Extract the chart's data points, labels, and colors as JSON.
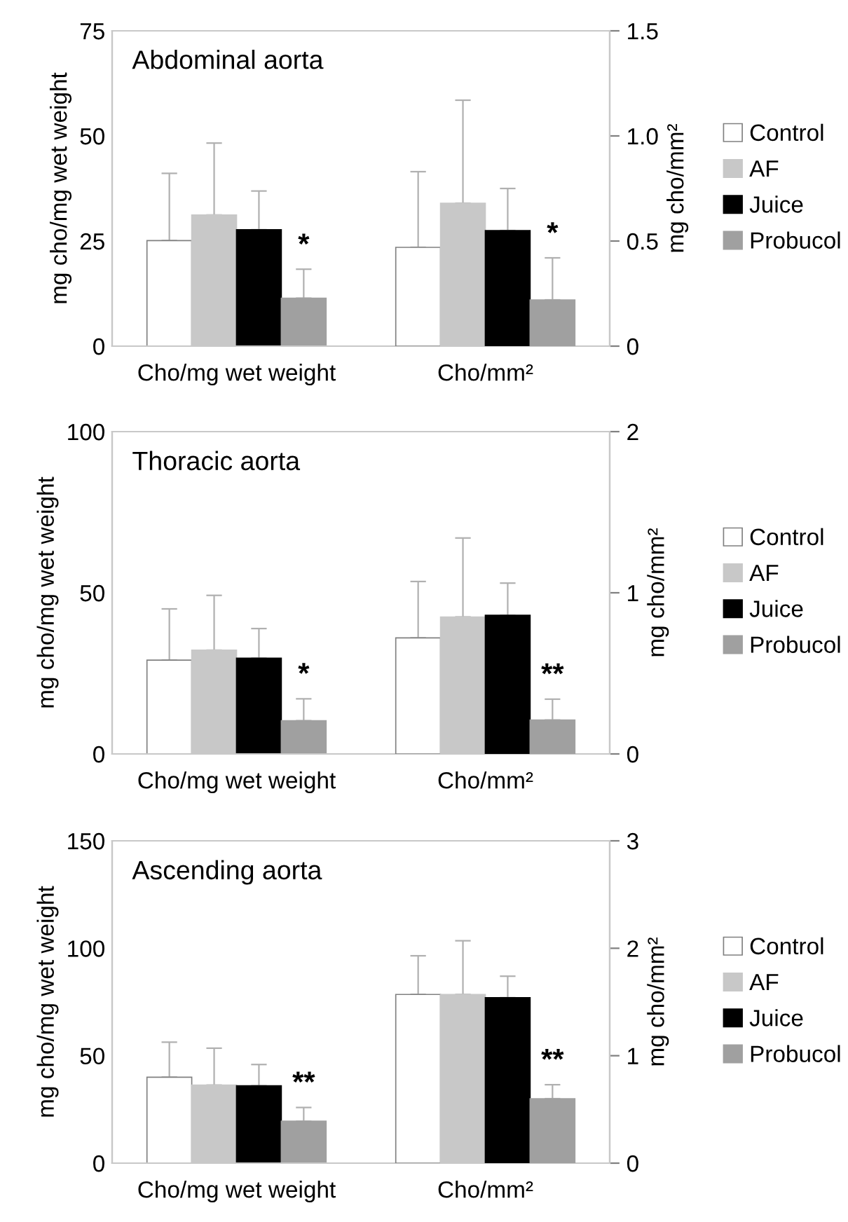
{
  "chart_data": [
    {
      "type": "bar",
      "title": "Abdominal aorta",
      "categories": [
        "Cho/mg wet weight",
        "Cho/mm²"
      ],
      "ylabel": "mg cho/mg wet weight",
      "y2label": "mg cho/mm²",
      "ylim": [
        0,
        75
      ],
      "yticks": [
        0,
        25,
        50,
        75
      ],
      "y2lim": [
        0,
        1.5
      ],
      "y2ticks": [
        0,
        {
          "value": 0.5,
          "label": "0.5"
        },
        {
          "value": 1.0,
          "label": "1.0"
        },
        {
          "value": 1.5,
          "label": "1.5"
        }
      ],
      "series": [
        {
          "name": "Control",
          "color": "#ffffff",
          "values": [
            25.1,
            null
          ],
          "errors": [
            [
              25.1,
              41.1
            ],
            null
          ]
        },
        {
          "name": "AF",
          "color": "#c8c8c8",
          "values": [
            31.2,
            null
          ],
          "errors": [
            [
              31.2,
              48.3
            ],
            null
          ]
        },
        {
          "name": "Juice",
          "color": "#000000",
          "values": [
            27.7,
            null
          ],
          "errors": [
            [
              27.7,
              36.9
            ],
            null
          ]
        },
        {
          "name": "Probucol",
          "color": "#a0a0a0",
          "values": [
            11.4,
            null
          ],
          "errors": [
            [
              11.4,
              18.3
            ],
            null
          ]
        },
        {
          "color": "#ffffff",
          "axis": "y2",
          "values": [
            null,
            0.47
          ],
          "errors": [
            null,
            [
              0.47,
              0.83
            ]
          ]
        },
        {
          "color": "#c8c8c8",
          "axis": "y2",
          "values": [
            null,
            0.68
          ],
          "errors": [
            null,
            [
              0.68,
              1.17
            ]
          ]
        },
        {
          "color": "#000000",
          "axis": "y2",
          "values": [
            null,
            0.55
          ],
          "errors": [
            null,
            [
              0.55,
              0.75
            ]
          ]
        },
        {
          "color": "#a0a0a0",
          "axis": "y2",
          "values": [
            null,
            0.22
          ],
          "errors": [
            null,
            [
              0.22,
              0.42
            ]
          ]
        }
      ],
      "annotations": [
        "*",
        "*"
      ],
      "legend": "right",
      "grid": false
    },
    {
      "type": "bar",
      "title": "Thoracic aorta",
      "categories": [
        "Cho/mg wet weight",
        "Cho/mm²"
      ],
      "ylabel": "mg cho/mg wet weight",
      "y2label": "mg cho/mm²",
      "ylim": [
        0,
        100
      ],
      "yticks": [
        0,
        50,
        100
      ],
      "y2lim": [
        0,
        2
      ],
      "y2ticks": [
        0,
        1,
        2
      ],
      "series": [
        {
          "name": "Control",
          "color": "#ffffff",
          "values": [
            29.1,
            null
          ],
          "errors": [
            [
              29.1,
              45.0
            ],
            null
          ]
        },
        {
          "name": "AF",
          "color": "#c8c8c8",
          "values": [
            32.2,
            null
          ],
          "errors": [
            [
              32.2,
              49.2
            ],
            null
          ]
        },
        {
          "name": "Juice",
          "color": "#000000",
          "values": [
            29.7,
            null
          ],
          "errors": [
            [
              29.7,
              38.9
            ],
            null
          ]
        },
        {
          "name": "Probucol",
          "color": "#a0a0a0",
          "values": [
            10.3,
            null
          ],
          "errors": [
            [
              10.3,
              17.1
            ],
            null
          ]
        },
        {
          "color": "#ffffff",
          "axis": "y2",
          "values": [
            null,
            0.72
          ],
          "errors": [
            null,
            [
              0.72,
              1.07
            ]
          ]
        },
        {
          "color": "#c8c8c8",
          "axis": "y2",
          "values": [
            null,
            0.85
          ],
          "errors": [
            null,
            [
              0.85,
              1.34
            ]
          ]
        },
        {
          "color": "#000000",
          "axis": "y2",
          "values": [
            null,
            0.86
          ],
          "errors": [
            null,
            [
              0.86,
              1.06
            ]
          ]
        },
        {
          "color": "#a0a0a0",
          "axis": "y2",
          "values": [
            null,
            0.21
          ],
          "errors": [
            null,
            [
              0.21,
              0.34
            ]
          ]
        }
      ],
      "annotations": [
        "*",
        "**"
      ],
      "legend": "right",
      "grid": false
    },
    {
      "type": "bar",
      "title": "Ascending aorta",
      "categories": [
        "Cho/mg wet weight",
        "Cho/mm²"
      ],
      "ylabel": "mg cho/mg wet weight",
      "y2label": "mg cho/mm²",
      "ylim": [
        0,
        150
      ],
      "yticks": [
        0,
        50,
        100,
        150
      ],
      "y2lim": [
        0,
        3
      ],
      "y2ticks": [
        0,
        1,
        2,
        3
      ],
      "series": [
        {
          "name": "Control",
          "color": "#ffffff",
          "values": [
            40.0,
            null
          ],
          "errors": [
            [
              40.0,
              56.3
            ],
            null
          ]
        },
        {
          "name": "AF",
          "color": "#c8c8c8",
          "values": [
            36.3,
            null
          ],
          "errors": [
            [
              36.3,
              53.5
            ],
            null
          ]
        },
        {
          "name": "Juice",
          "color": "#000000",
          "values": [
            36.0,
            null
          ],
          "errors": [
            [
              36.0,
              45.9
            ],
            null
          ]
        },
        {
          "name": "Probucol",
          "color": "#a0a0a0",
          "values": [
            19.5,
            null
          ],
          "errors": [
            [
              19.5,
              25.9
            ],
            null
          ]
        },
        {
          "color": "#ffffff",
          "axis": "y2",
          "values": [
            null,
            1.57
          ],
          "errors": [
            null,
            [
              1.57,
              1.93
            ]
          ]
        },
        {
          "color": "#c8c8c8",
          "axis": "y2",
          "values": [
            null,
            1.57
          ],
          "errors": [
            null,
            [
              1.57,
              2.07
            ]
          ]
        },
        {
          "color": "#000000",
          "axis": "y2",
          "values": [
            null,
            1.54
          ],
          "errors": [
            null,
            [
              1.54,
              1.74
            ]
          ]
        },
        {
          "color": "#a0a0a0",
          "axis": "y2",
          "values": [
            null,
            0.6
          ],
          "errors": [
            null,
            [
              0.6,
              0.73
            ]
          ]
        }
      ],
      "annotations": [
        "**",
        "**"
      ],
      "legend": "right",
      "grid": false
    }
  ]
}
